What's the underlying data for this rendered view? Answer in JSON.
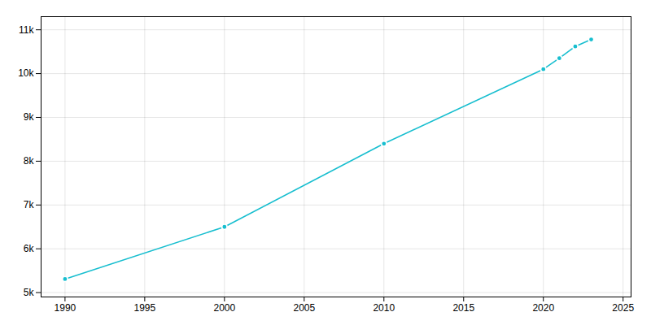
{
  "chart_data": {
    "type": "line",
    "x": [
      1990,
      2000,
      2010,
      2020,
      2021,
      2022,
      2023
    ],
    "values": [
      5310,
      6500,
      8400,
      10100,
      10350,
      10620,
      10780
    ],
    "color": "#17BECF",
    "marker": "circle",
    "xlim": [
      1988.5,
      2025.5
    ],
    "ylim": [
      4900,
      11300
    ],
    "xticks": [
      1990,
      1995,
      2000,
      2005,
      2010,
      2015,
      2020,
      2025
    ],
    "yticks": [
      {
        "value": 5000,
        "label": "5k"
      },
      {
        "value": 6000,
        "label": "6k"
      },
      {
        "value": 7000,
        "label": "7k"
      },
      {
        "value": 8000,
        "label": "8k"
      },
      {
        "value": 9000,
        "label": "9k"
      },
      {
        "value": 10000,
        "label": "10k"
      },
      {
        "value": 11000,
        "label": "11k"
      }
    ],
    "grid": true
  }
}
